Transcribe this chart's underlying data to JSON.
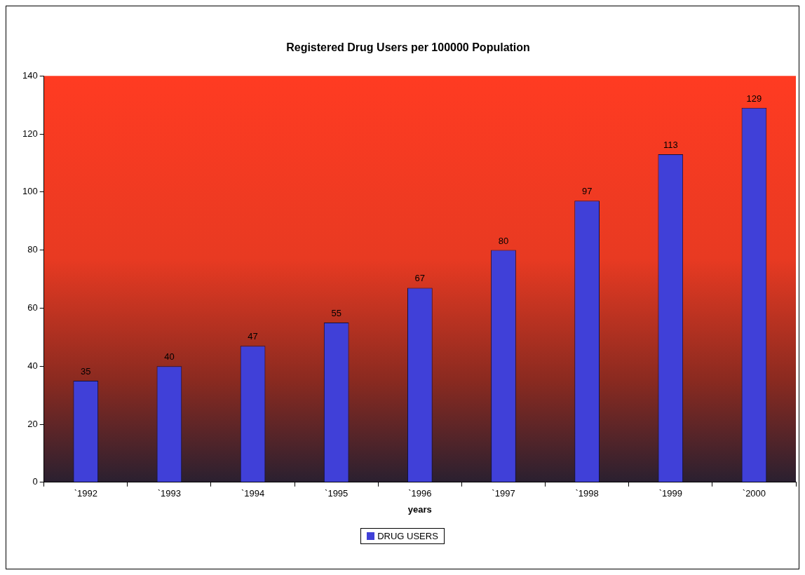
{
  "chart_data": {
    "type": "bar",
    "title": "Registered Drug Users per 100000 Population",
    "xlabel": "years",
    "categories": [
      "`1992",
      "`1993",
      "`1994",
      "`1995",
      "`1996",
      "`1997",
      "`1998",
      "`1999",
      "`2000"
    ],
    "series": [
      {
        "name": "DRUG USERS",
        "color": "#4040d8",
        "values": [
          35,
          40,
          47,
          55,
          67,
          80,
          97,
          113,
          129
        ]
      }
    ],
    "ylim": [
      0,
      140
    ],
    "yticks": [
      0,
      20,
      40,
      60,
      80,
      100,
      120,
      140
    ],
    "grid": false,
    "legend": "bottom",
    "data_labels": true
  }
}
